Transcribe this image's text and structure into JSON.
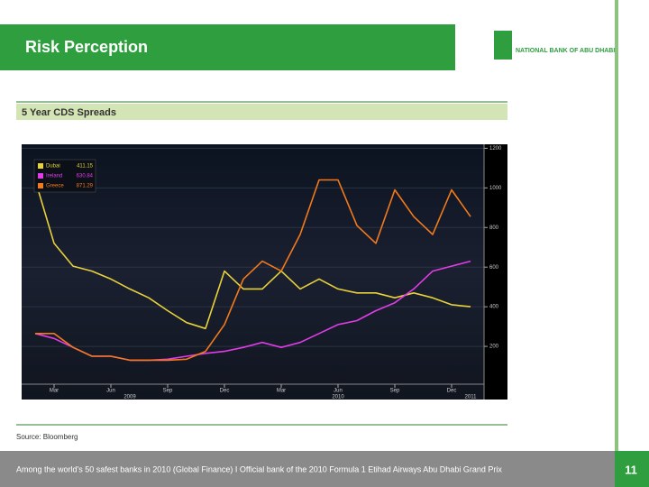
{
  "slide": {
    "title": "Risk Perception",
    "logo_text": "NATIONAL BANK OF ABU DHABI",
    "source": "Source: Bloomberg",
    "footer": "Among the world's 50 safest banks in 2010 (Global Finance) I Official bank of the 2010 Formula 1 Etihad Airways Abu Dhabi Grand Prix",
    "page_number": "11"
  },
  "chart_data": {
    "type": "line",
    "title": "5 Year CDS Spreads",
    "x": [
      "2009-02",
      "2009-03",
      "2009-04",
      "2009-05",
      "2009-06",
      "2009-07",
      "2009-08",
      "2009-09",
      "2009-10",
      "2009-11",
      "2009-12",
      "2010-01",
      "2010-02",
      "2010-03",
      "2010-04",
      "2010-05",
      "2010-06",
      "2010-07",
      "2010-08",
      "2010-09",
      "2010-10",
      "2010-11",
      "2010-12",
      "2011-01"
    ],
    "xlim": [
      "2009-01",
      "2011-01"
    ],
    "xticks": [
      {
        "value": "2009-03",
        "label": "Mar"
      },
      {
        "value": "2009-06",
        "label": "Jun"
      },
      {
        "value": "2009-09",
        "label": "Sep"
      },
      {
        "value": "2009-12",
        "label": "Dec"
      },
      {
        "value": "2010-03",
        "label": "Mar"
      },
      {
        "value": "2010-06",
        "label": "Jun"
      },
      {
        "value": "2010-09",
        "label": "Sep"
      },
      {
        "value": "2010-12",
        "label": "Dec"
      }
    ],
    "year_labels": [
      {
        "value": "2009-07",
        "label": "2009"
      },
      {
        "value": "2010-06",
        "label": "2010"
      },
      {
        "value": "2011-01",
        "label": "2011"
      }
    ],
    "ylim": [
      0,
      1220
    ],
    "yticks": [
      200,
      400,
      600,
      800,
      1000,
      1200
    ],
    "legend_position": "upper left",
    "series": [
      {
        "name": "Dubai",
        "legend_value": "411.15",
        "color": "#e8d23a",
        "values": [
          1040,
          720,
          605,
          580,
          540,
          490,
          445,
          380,
          320,
          290,
          580,
          490,
          490,
          580,
          490,
          540,
          490,
          470,
          470,
          445,
          470,
          445,
          410,
          400
        ]
      },
      {
        "name": "Ireland",
        "legend_value": "630.84",
        "color": "#e23ce8",
        "values": [
          265,
          240,
          195,
          150,
          150,
          130,
          130,
          135,
          150,
          165,
          175,
          195,
          220,
          195,
          220,
          265,
          310,
          330,
          380,
          420,
          490,
          580,
          605,
          630
        ]
      },
      {
        "name": "Greece",
        "legend_value": "871.29",
        "color": "#f27a1c",
        "values": [
          265,
          265,
          195,
          150,
          150,
          130,
          130,
          130,
          135,
          175,
          310,
          540,
          630,
          580,
          765,
          1040,
          1040,
          810,
          720,
          990,
          855,
          765,
          990,
          855
        ]
      }
    ]
  }
}
